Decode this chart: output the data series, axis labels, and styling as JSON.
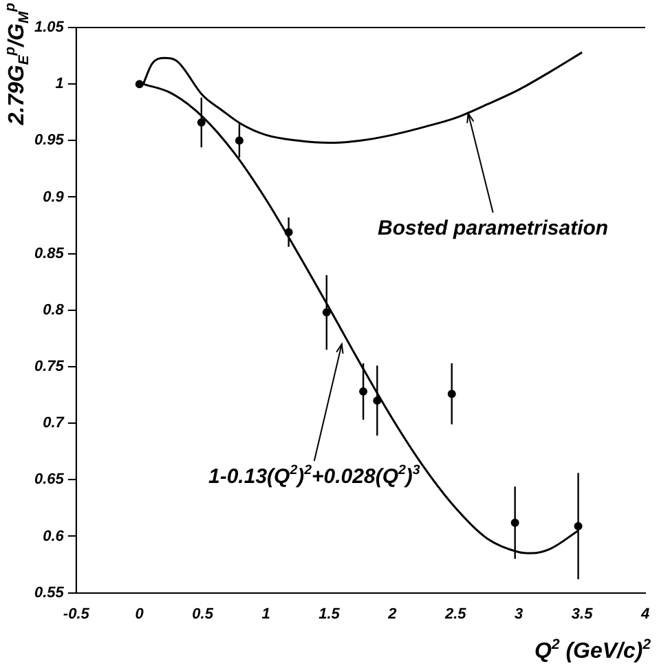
{
  "chart_data": {
    "type": "scatter",
    "xlabel": "Q$^{2}$ (GeV/c)$^{2}$",
    "ylabel": "2.79G$_{E}$$^{p}$/G$_{M}$$^{p}$",
    "xlim": [
      -0.5,
      4
    ],
    "xticks": [
      -0.5,
      0,
      0.5,
      1,
      1.5,
      2,
      2.5,
      3,
      3.5,
      4
    ],
    "ylim": [
      0.55,
      1.05
    ],
    "yticks": [
      0.55,
      0.6,
      0.65,
      0.7,
      0.75,
      0.8,
      0.85,
      0.9,
      0.95,
      1,
      1.05
    ],
    "grid": false,
    "legend": false,
    "marker": "circle",
    "series": [
      {
        "type": "scatter",
        "color": "#000000",
        "x": [
          0,
          0.49,
          0.79,
          1.18,
          1.48,
          1.77,
          1.88,
          2.47,
          2.97,
          3.47
        ],
        "values": [
          1.0,
          0.966,
          0.95,
          0.869,
          0.798,
          0.728,
          0.72,
          0.726,
          0.612,
          0.609
        ],
        "errors": [
          null,
          0.022,
          0.015,
          0.013,
          0.033,
          0.025,
          0.031,
          0.027,
          0.032,
          0.047
        ]
      },
      {
        "type": "line",
        "color": "#000000",
        "marker": "none",
        "x": [
          0.03,
          0.25,
          0.5,
          0.75,
          1,
          1.25,
          1.5,
          1.75,
          2,
          2.25,
          2.5,
          2.75,
          3,
          3.1,
          3.25,
          3.47
        ],
        "values": [
          1.0,
          0.992,
          0.971,
          0.939,
          0.898,
          0.851,
          0.802,
          0.752,
          0.704,
          0.661,
          0.625,
          0.598,
          0.586,
          0.585,
          0.589,
          0.605
        ]
      },
      {
        "type": "line",
        "color": "#000000",
        "marker": "none",
        "x": [
          0.03,
          0.1,
          0.2,
          0.3,
          0.5,
          0.65,
          0.8,
          1.0,
          1.25,
          1.5,
          1.75,
          2.0,
          2.25,
          2.5,
          2.75,
          3.0,
          3.25,
          3.5
        ],
        "values": [
          1.0,
          1.018,
          1.023,
          1.02,
          0.99,
          0.977,
          0.965,
          0.955,
          0.95,
          0.948,
          0.95,
          0.955,
          0.962,
          0.97,
          0.982,
          0.995,
          1.011,
          1.028
        ]
      }
    ],
    "annotations": [
      {
        "text": "Bosted parametrisation",
        "x": 2.6,
        "y": 0.974
      },
      {
        "text": "1-0.13(Q$^{2}$)$^{2}$+0.028(Q$^{2}$)$^{3}$",
        "x": 1.6,
        "y": 0.77
      }
    ]
  }
}
